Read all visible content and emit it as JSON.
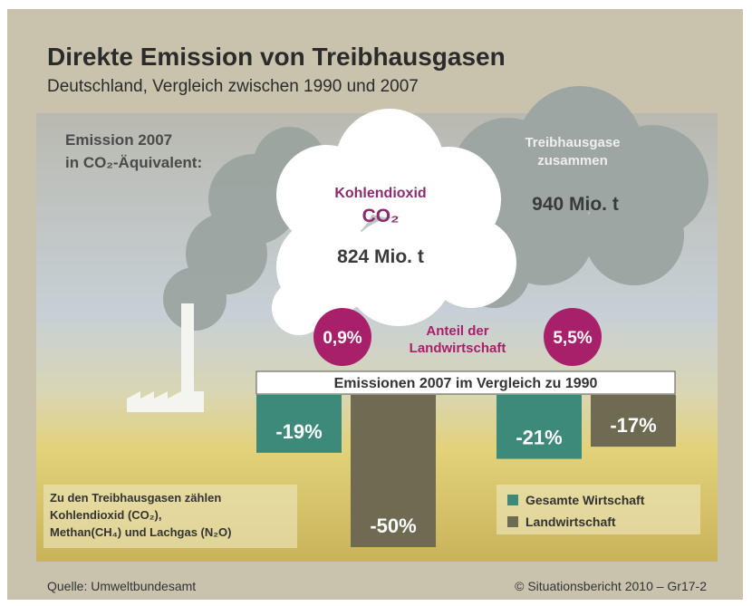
{
  "chart_data": {
    "type": "bar",
    "title": "Direkte Emission von Treibhausgasen",
    "subtitle": "Deutschland, Vergleich zwischen 1990 und 2007",
    "band_label": "Emissionen 2007 im Vergleich zu 1990",
    "categories": [
      null,
      null
    ],
    "series": [
      {
        "name": "Gesamte Wirtschaft",
        "color": "#3d8a7a",
        "values": [
          -19,
          -21
        ],
        "value_labels": [
          "-19%",
          "-21%"
        ]
      },
      {
        "name": "Landwirtschaft",
        "color": "#6f6a52",
        "values": [
          -50,
          -17
        ],
        "value_labels": [
          "-50%",
          "-17%"
        ]
      }
    ],
    "ylim": [
      -50,
      0
    ]
  },
  "infographic": {
    "emission_heading": [
      "Emission 2007",
      "in CO₂-Äquivalent:"
    ],
    "co2_cloud": {
      "name": "Kohlendioxid",
      "formula": "CO₂",
      "amount": "824 Mio. t"
    },
    "total_cloud": {
      "name": [
        "Treibhausgase",
        "zusammen"
      ],
      "amount": "940 Mio. t"
    },
    "share_label": [
      "Anteil der",
      "Landwirtschaft"
    ],
    "share_co2": "0,9%",
    "share_total": "5,5%",
    "note": [
      "Zu den Treibhausgasen zählen",
      "Kohlendioxid (CO₂),",
      "Methan(CH₄) und Lachgas (N₂O)"
    ],
    "source": "Quelle: Umweltbundesamt",
    "copyright": "© Situationsbericht 2010 – Gr17-2"
  }
}
